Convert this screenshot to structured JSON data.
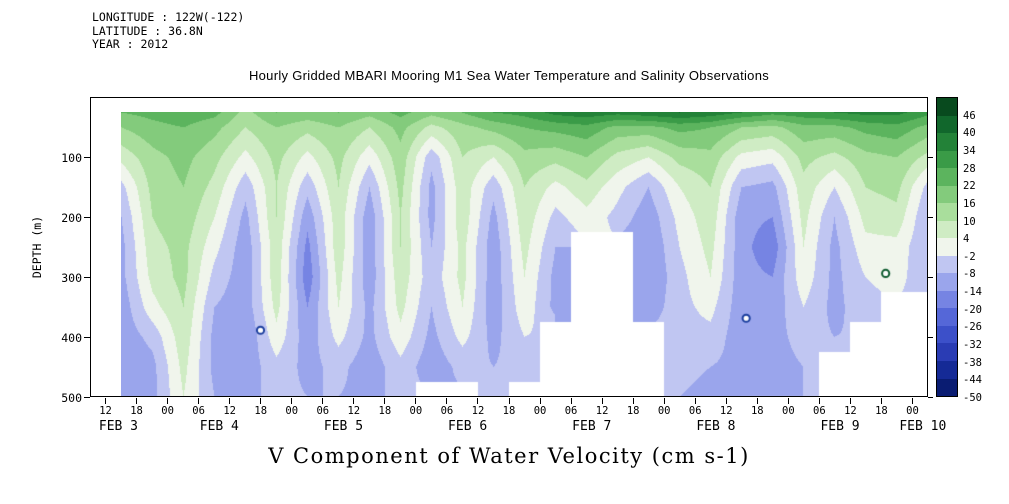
{
  "meta": {
    "longitude": "LONGITUDE : 122W(-122)",
    "latitude": "LATITUDE : 36.8N",
    "year": "YEAR : 2012"
  },
  "title": "Hourly Gridded MBARI Mooring M1 Sea Water Temperature and Salinity Observations",
  "caption": "V Component of Water Velocity (cm s-1)",
  "colors": {
    "background": "#ffffff",
    "text": "#000000",
    "frame": "#000000"
  },
  "axes": {
    "y_label": "DEPTH (m)",
    "y_ticks": [
      100,
      200,
      300,
      400,
      500
    ],
    "x_hour_tick_start": 3,
    "x_hour_tick_step": 6,
    "x_hour_ticks": [
      "12",
      "18",
      "00",
      "06",
      "12",
      "18",
      "00",
      "06",
      "12",
      "18",
      "00",
      "06",
      "12",
      "18",
      "00",
      "06",
      "12",
      "18",
      "00",
      "06",
      "12",
      "18",
      "00",
      "06",
      "12",
      "18",
      "00"
    ],
    "x_day_labels": [
      {
        "label": "FEB 3",
        "t": 5.5
      },
      {
        "label": "FEB 4",
        "t": 25
      },
      {
        "label": "FEB 5",
        "t": 49
      },
      {
        "label": "FEB 6",
        "t": 73
      },
      {
        "label": "FEB 7",
        "t": 97
      },
      {
        "label": "FEB 8",
        "t": 121
      },
      {
        "label": "FEB 9",
        "t": 145
      },
      {
        "label": "FEB 10",
        "t": 161
      }
    ]
  },
  "colorbar": {
    "tick_values": [
      46,
      40,
      34,
      28,
      22,
      16,
      10,
      4,
      -2,
      -8,
      -14,
      -20,
      -26,
      -32,
      -38,
      -44,
      -50
    ]
  },
  "chart_data": {
    "type": "heatmap",
    "title": "Hourly Gridded MBARI Mooring M1 Sea Water Temperature and Salinity Observations",
    "variable": "V Component of Water Velocity",
    "units": "cm s-1",
    "x_axis": "time, hours since Feb 3 2012 09:00 (axis spans Feb 3 09:00 - Feb 10 03:00)",
    "y_axis": "depth (m), 0 at top to 500 at bottom",
    "t_axis_hours": 162,
    "depth_axis_max": 500,
    "time_step_hours": 6,
    "times_hours": [
      6,
      12,
      18,
      24,
      30,
      36,
      42,
      48,
      54,
      60,
      66,
      72,
      78,
      84,
      90,
      96,
      102,
      108,
      114,
      120,
      126,
      132,
      138,
      144,
      150,
      156,
      162
    ],
    "depths_m": [
      25,
      50,
      100,
      150,
      200,
      250,
      300,
      350,
      400,
      450,
      500
    ],
    "values": [
      [
        22,
        24,
        26,
        24,
        14,
        22,
        20,
        22,
        18,
        24,
        18,
        22,
        28,
        30,
        36,
        38,
        36,
        38,
        40,
        38,
        34,
        30,
        32,
        34,
        36,
        36,
        30
      ],
      [
        16,
        20,
        22,
        18,
        10,
        16,
        12,
        16,
        10,
        18,
        8,
        14,
        18,
        22,
        24,
        26,
        20,
        20,
        24,
        22,
        16,
        14,
        20,
        20,
        24,
        26,
        20
      ],
      [
        6,
        14,
        18,
        12,
        2,
        12,
        2,
        12,
        0,
        14,
        -6,
        10,
        4,
        14,
        12,
        16,
        8,
        4,
        12,
        14,
        2,
        0,
        12,
        8,
        14,
        16,
        8
      ],
      [
        -4,
        12,
        16,
        8,
        -6,
        10,
        -6,
        10,
        -8,
        12,
        -10,
        8,
        -6,
        10,
        2,
        8,
        0,
        -8,
        4,
        10,
        -8,
        -10,
        8,
        -2,
        10,
        12,
        -4
      ],
      [
        -8,
        10,
        14,
        4,
        -10,
        10,
        -12,
        8,
        -12,
        10,
        -10,
        8,
        -10,
        8,
        -4,
        2,
        -4,
        -12,
        0,
        8,
        -12,
        -14,
        6,
        -8,
        6,
        8,
        -8
      ],
      [
        -10,
        8,
        12,
        0,
        -12,
        8,
        -16,
        8,
        -12,
        10,
        -8,
        6,
        -12,
        6,
        -8,
        null,
        null,
        -14,
        -2,
        6,
        -12,
        -18,
        4,
        -10,
        2,
        2,
        -8
      ],
      [
        -10,
        6,
        12,
        -4,
        -12,
        8,
        -18,
        6,
        -12,
        8,
        -6,
        6,
        -12,
        4,
        -10,
        null,
        null,
        -14,
        -4,
        4,
        -12,
        -14,
        2,
        -10,
        -2,
        0,
        -6
      ],
      [
        -12,
        2,
        10,
        -8,
        -12,
        6,
        -14,
        4,
        -10,
        6,
        -8,
        4,
        -12,
        2,
        -10,
        null,
        null,
        -12,
        -4,
        0,
        -12,
        -12,
        -2,
        -10,
        -4,
        null,
        null
      ],
      [
        -12,
        -6,
        8,
        -10,
        -14,
        2,
        -12,
        0,
        -10,
        2,
        -10,
        0,
        -10,
        -2,
        null,
        null,
        null,
        null,
        -4,
        -4,
        -12,
        -10,
        -6,
        -8,
        null,
        null,
        null
      ],
      [
        -14,
        -10,
        6,
        -10,
        -12,
        -4,
        -10,
        -6,
        -12,
        -4,
        -12,
        -6,
        -8,
        -6,
        null,
        null,
        null,
        null,
        -6,
        -8,
        -10,
        -10,
        -8,
        null,
        null,
        null,
        null
      ],
      [
        -12,
        -10,
        4,
        -8,
        -10,
        -6,
        -8,
        -8,
        -10,
        -6,
        null,
        null,
        -6,
        null,
        null,
        null,
        null,
        null,
        -8,
        -10,
        -8,
        -8,
        -8,
        null,
        null,
        null,
        null
      ]
    ],
    "level_min": -50,
    "level_step": 6,
    "palette_ascending": [
      "#0a1c72",
      "#152a96",
      "#2a3cb4",
      "#3c50c9",
      "#5567d8",
      "#7684e3",
      "#9aa5ec",
      "#c0c6f2",
      "#f0f5ec",
      "#cfecc4",
      "#a9de9c",
      "#83cb7c",
      "#5cb45e",
      "#3a9b47",
      "#238238",
      "#11672c",
      "#084a1e"
    ],
    "missing_spots": [
      {
        "t": 33,
        "depth": 390,
        "ring": "#1c3f9e"
      },
      {
        "t": 127,
        "depth": 370,
        "ring": "#1c3f9e"
      },
      {
        "t": 154,
        "depth": 295,
        "ring": "#0c5a2d"
      }
    ]
  }
}
